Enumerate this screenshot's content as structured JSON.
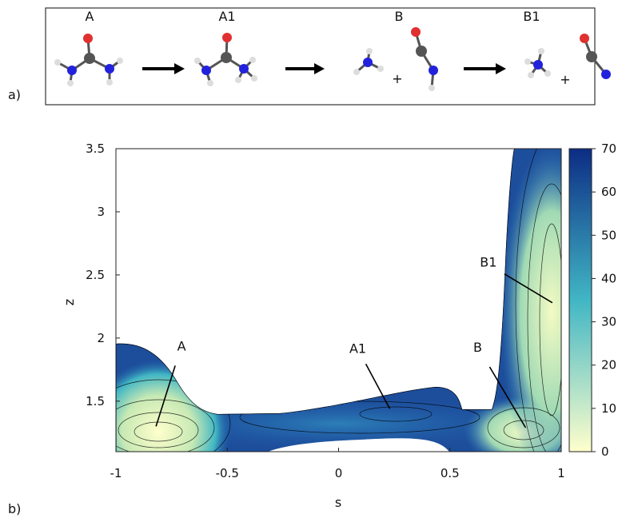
{
  "panel_a": {
    "label": "a)",
    "molecules": [
      "A",
      "A1",
      "B",
      "B1"
    ],
    "plus_signs": [
      "+",
      "+"
    ]
  },
  "panel_b_label": "b)",
  "chart_data": {
    "type": "contour",
    "x_label": "s",
    "y_label": "z",
    "xlim": [
      -1,
      1
    ],
    "xticks": [
      -1,
      -0.5,
      0,
      0.5,
      1
    ],
    "ylim": [
      1.1,
      3.5
    ],
    "yticks": [
      1.5,
      2,
      2.5,
      3,
      3.5
    ],
    "colorbar": {
      "lim": [
        0,
        70
      ],
      "ticks": [
        0,
        10,
        20,
        30,
        40,
        50,
        60,
        70
      ],
      "colors": [
        "#ffffcc",
        "#41b6c4",
        "#0c2c84"
      ]
    },
    "annotations": [
      {
        "text": "A",
        "x": -0.82,
        "y": 1.3
      },
      {
        "text": "A1",
        "x": 0.23,
        "y": 1.44
      },
      {
        "text": "B",
        "x": 0.84,
        "y": 1.29
      },
      {
        "text": "B1",
        "x": 0.96,
        "y": 2.28
      }
    ]
  }
}
